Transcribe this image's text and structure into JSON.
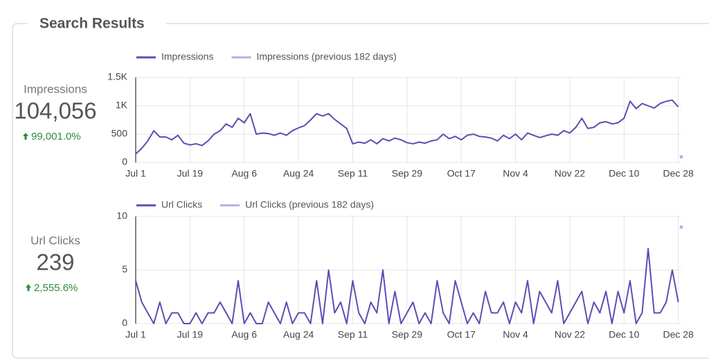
{
  "title": "Search Results",
  "scorecards": [
    {
      "label": "Impressions",
      "value": "104,056",
      "change": "99,001.0%"
    },
    {
      "label": "Url Clicks",
      "value": "239",
      "change": "2,555.6%"
    }
  ],
  "chart_data": [
    {
      "type": "line",
      "x": [
        0,
        2,
        4,
        6,
        8,
        10,
        12,
        14,
        16,
        18,
        20,
        22,
        24,
        26,
        28,
        30,
        32,
        34,
        36,
        38,
        40,
        42,
        44,
        46,
        48,
        50,
        52,
        54,
        56,
        58,
        60,
        62,
        64,
        66,
        68,
        70,
        72,
        74,
        76,
        78,
        80,
        82,
        84,
        86,
        88,
        90,
        92,
        94,
        96,
        98,
        100,
        102,
        104,
        106,
        108,
        110,
        112,
        114,
        116,
        118,
        120,
        122,
        124,
        126,
        128,
        130,
        132,
        134,
        136,
        138,
        140,
        142,
        144,
        146,
        148,
        150,
        152,
        154,
        156,
        158,
        160,
        162,
        164,
        166,
        168,
        170,
        172,
        174,
        176,
        178,
        180
      ],
      "series": [
        {
          "name": "Impressions",
          "color": "#5b4db3",
          "values": [
            150,
            250,
            380,
            560,
            450,
            450,
            400,
            480,
            340,
            310,
            330,
            300,
            380,
            500,
            560,
            680,
            620,
            780,
            700,
            860,
            500,
            520,
            510,
            480,
            520,
            480,
            560,
            610,
            650,
            750,
            860,
            820,
            860,
            760,
            680,
            600,
            330,
            360,
            340,
            400,
            330,
            420,
            380,
            430,
            400,
            350,
            330,
            360,
            340,
            380,
            400,
            500,
            420,
            460,
            400,
            480,
            500,
            460,
            450,
            430,
            380,
            480,
            420,
            500,
            400,
            520,
            480,
            440,
            470,
            500,
            480,
            560,
            520,
            620,
            780,
            600,
            620,
            700,
            720,
            680,
            700,
            780,
            1080,
            950,
            1040,
            1000,
            960,
            1040,
            1080,
            1100,
            980
          ]
        },
        {
          "name": "Impressions (previous 182 days)",
          "color": "#b5aee3",
          "x": [
            181
          ],
          "values": [
            100
          ]
        }
      ],
      "xlim": [
        0,
        181
      ],
      "xticks": [
        {
          "value": 0,
          "label": "Jul 1"
        },
        {
          "value": 18,
          "label": "Jul 19"
        },
        {
          "value": 36,
          "label": "Aug 6"
        },
        {
          "value": 54,
          "label": "Aug 24"
        },
        {
          "value": 72,
          "label": "Sep 11"
        },
        {
          "value": 90,
          "label": "Sep 29"
        },
        {
          "value": 108,
          "label": "Oct 17"
        },
        {
          "value": 126,
          "label": "Nov 4"
        },
        {
          "value": 144,
          "label": "Nov 22"
        },
        {
          "value": 162,
          "label": "Dec 10"
        },
        {
          "value": 180,
          "label": "Dec 28"
        }
      ],
      "ylim": [
        0,
        1500
      ],
      "yticks": [
        0,
        500,
        {
          "value": 1000,
          "label": "1K"
        },
        {
          "value": 1500,
          "label": "1.5K"
        }
      ],
      "grid": true,
      "legend": "top-left"
    },
    {
      "type": "line",
      "x": [
        0,
        2,
        4,
        6,
        8,
        10,
        12,
        14,
        16,
        18,
        20,
        22,
        24,
        26,
        28,
        30,
        32,
        34,
        36,
        38,
        40,
        42,
        44,
        46,
        48,
        50,
        52,
        54,
        56,
        58,
        60,
        62,
        64,
        66,
        68,
        70,
        72,
        74,
        76,
        78,
        80,
        82,
        84,
        86,
        88,
        90,
        92,
        94,
        96,
        98,
        100,
        102,
        104,
        106,
        108,
        110,
        112,
        114,
        116,
        118,
        120,
        122,
        124,
        126,
        128,
        130,
        132,
        134,
        136,
        138,
        140,
        142,
        144,
        146,
        148,
        150,
        152,
        154,
        156,
        158,
        160,
        162,
        164,
        166,
        168,
        170,
        172,
        174,
        176,
        178,
        180
      ],
      "series": [
        {
          "name": "Url Clicks",
          "color": "#5b4db3",
          "values": [
            4,
            2,
            1,
            0,
            2,
            0,
            1,
            1,
            0,
            0,
            1,
            0,
            1,
            1,
            2,
            1,
            0,
            4,
            0,
            1,
            0,
            0,
            2,
            1,
            0,
            2,
            0,
            1,
            1,
            0,
            4,
            0,
            5,
            1,
            2,
            0,
            4,
            1,
            0,
            2,
            1,
            5,
            0,
            3,
            0,
            1,
            2,
            0,
            1,
            0,
            4,
            1,
            0,
            4,
            2,
            0,
            1,
            0,
            3,
            1,
            1,
            2,
            0,
            2,
            1,
            4,
            0,
            3,
            2,
            1,
            4,
            0,
            1,
            2,
            3,
            0,
            2,
            1,
            3,
            0,
            3,
            1,
            4,
            0,
            1,
            7,
            1,
            1,
            2,
            5,
            2
          ]
        },
        {
          "name": "Url Clicks (previous 182 days)",
          "color": "#b5aee3",
          "x": [
            181
          ],
          "values": [
            9
          ]
        }
      ],
      "xlim": [
        0,
        181
      ],
      "xticks": [
        {
          "value": 0,
          "label": "Jul 1"
        },
        {
          "value": 18,
          "label": "Jul 19"
        },
        {
          "value": 36,
          "label": "Aug 6"
        },
        {
          "value": 54,
          "label": "Aug 24"
        },
        {
          "value": 72,
          "label": "Sep 11"
        },
        {
          "value": 90,
          "label": "Sep 29"
        },
        {
          "value": 108,
          "label": "Oct 17"
        },
        {
          "value": 126,
          "label": "Nov 4"
        },
        {
          "value": 144,
          "label": "Nov 22"
        },
        {
          "value": 162,
          "label": "Dec 10"
        },
        {
          "value": 180,
          "label": "Dec 28"
        }
      ],
      "ylim": [
        0,
        10
      ],
      "yticks": [
        0,
        5,
        10
      ],
      "grid": true,
      "legend": "top-left"
    }
  ]
}
